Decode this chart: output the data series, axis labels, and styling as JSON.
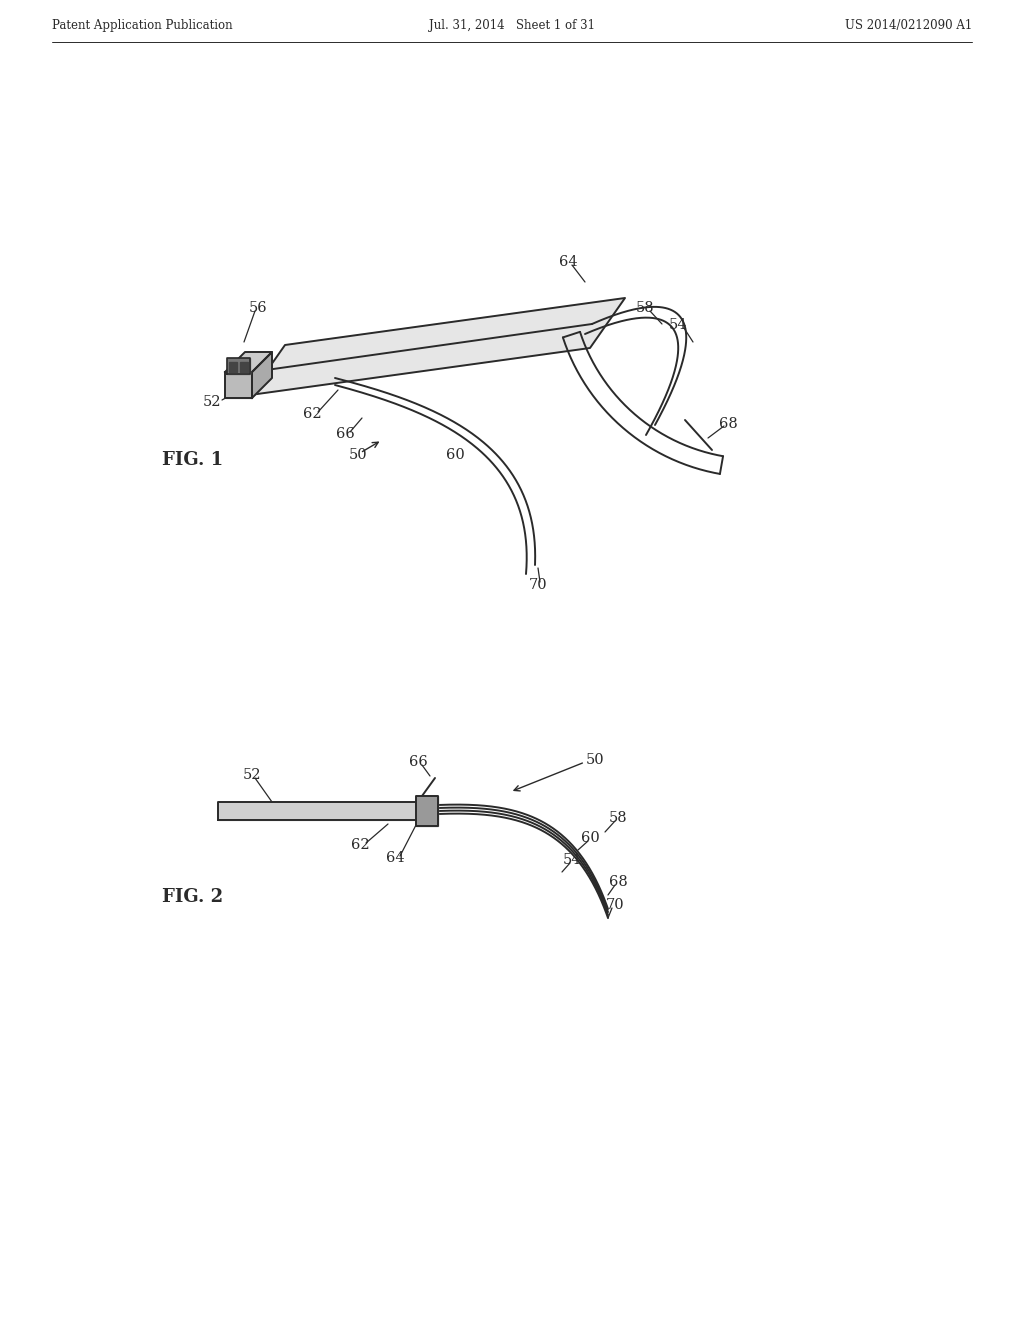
{
  "bg": "#ffffff",
  "lc": "#2a2a2a",
  "header_left": "Patent Application Publication",
  "header_center": "Jul. 31, 2014   Sheet 1 of 31",
  "header_right": "US 2014/0212090 A1",
  "fig1_label": "FIG. 1",
  "fig2_label": "FIG. 2"
}
